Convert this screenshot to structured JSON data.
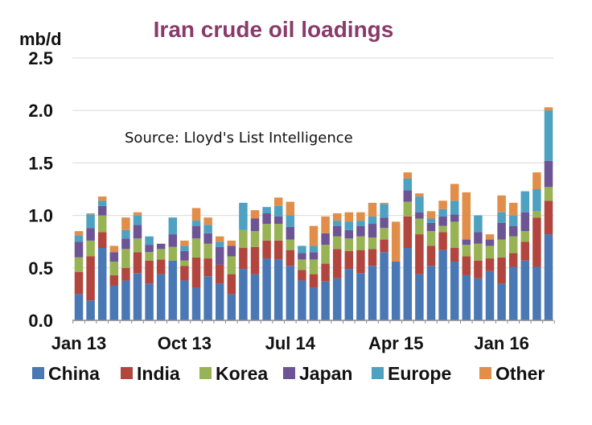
{
  "chart_data": {
    "type": "bar",
    "stacked": true,
    "title": "Iran crude oil loadings",
    "ylabel": "mb/d",
    "annotation": "Source: Lloyd's List Intelligence",
    "ylim": [
      0,
      2.5
    ],
    "yticks": [
      "0.0",
      "0.5",
      "1.0",
      "1.5",
      "2.0",
      "2.5"
    ],
    "ytick_values": [
      0,
      0.5,
      1.0,
      1.5,
      2.0,
      2.5
    ],
    "grid": true,
    "legend_position": "bottom",
    "x_tick_labels": [
      {
        "label": "Jan 13",
        "index": 0
      },
      {
        "label": "Oct 13",
        "index": 9
      },
      {
        "label": "Jul 14",
        "index": 18
      },
      {
        "label": "Apr 15",
        "index": 27
      },
      {
        "label": "Jan 16",
        "index": 36
      }
    ],
    "series": [
      {
        "name": "China",
        "color": "#4a78b5",
        "values": [
          0.25,
          0.19,
          0.69,
          0.33,
          0.38,
          0.45,
          0.35,
          0.44,
          0.57,
          0.38,
          0.31,
          0.42,
          0.35,
          0.25,
          0.49,
          0.44,
          0.59,
          0.58,
          0.52,
          0.38,
          0.31,
          0.37,
          0.4,
          0.49,
          0.45,
          0.52,
          0.65,
          0.56,
          0.69,
          0.44,
          0.52,
          0.67,
          0.56,
          0.43,
          0.4,
          0.47,
          0.35,
          0.51,
          0.57,
          0.51,
          0.82
        ]
      },
      {
        "name": "India",
        "color": "#b2463e",
        "values": [
          0.21,
          0.42,
          0.15,
          0.1,
          0.12,
          0.2,
          0.22,
          0.14,
          0.0,
          0.14,
          0.29,
          0.17,
          0.18,
          0.19,
          0.2,
          0.26,
          0.17,
          0.18,
          0.15,
          0.1,
          0.13,
          0.17,
          0.28,
          0.17,
          0.22,
          0.16,
          0.12,
          0.0,
          0.3,
          0.38,
          0.19,
          0.17,
          0.13,
          0.18,
          0.17,
          0.12,
          0.25,
          0.13,
          0.18,
          0.47,
          0.32
        ]
      },
      {
        "name": "Korea",
        "color": "#98b354",
        "values": [
          0.14,
          0.15,
          0.16,
          0.13,
          0.18,
          0.13,
          0.08,
          0.1,
          0.13,
          0.05,
          0.18,
          0.14,
          0.0,
          0.17,
          0.17,
          0.15,
          0.16,
          0.16,
          0.1,
          0.1,
          0.14,
          0.18,
          0.12,
          0.12,
          0.13,
          0.11,
          0.11,
          0.0,
          0.14,
          0.15,
          0.14,
          0.06,
          0.25,
          0.11,
          0.16,
          0.12,
          0.17,
          0.16,
          0.1,
          0.06,
          0.13
        ]
      },
      {
        "name": "Japan",
        "color": "#6d5494",
        "values": [
          0.15,
          0.12,
          0.09,
          0.09,
          0.1,
          0.13,
          0.07,
          0.05,
          0.12,
          0.09,
          0.12,
          0.1,
          0.17,
          0.1,
          0.0,
          0.12,
          0.1,
          0.07,
          0.12,
          0.06,
          0.07,
          0.11,
          0.1,
          0.08,
          0.1,
          0.13,
          0.1,
          0.0,
          0.11,
          0.06,
          0.08,
          0.09,
          0.07,
          0.05,
          0.11,
          0.06,
          0.16,
          0.1,
          0.18,
          0.0,
          0.25
        ]
      },
      {
        "name": "Europe",
        "color": "#4ea1c1",
        "values": [
          0.06,
          0.13,
          0.05,
          0.0,
          0.08,
          0.09,
          0.08,
          0.0,
          0.16,
          0.05,
          0.05,
          0.08,
          0.05,
          0.0,
          0.26,
          0.0,
          0.06,
          0.1,
          0.11,
          0.07,
          0.06,
          0.0,
          0.05,
          0.08,
          0.05,
          0.07,
          0.13,
          0.0,
          0.11,
          0.15,
          0.04,
          0.07,
          0.13,
          0.0,
          0.16,
          0.0,
          0.1,
          0.1,
          0.2,
          0.21,
          0.48
        ]
      },
      {
        "name": "Other",
        "color": "#e08e4a",
        "values": [
          0.04,
          0.01,
          0.04,
          0.06,
          0.12,
          0.03,
          0.0,
          0.0,
          0.0,
          0.05,
          0.12,
          0.07,
          0.05,
          0.05,
          0.0,
          0.08,
          0.0,
          0.08,
          0.13,
          0.0,
          0.19,
          0.16,
          0.07,
          0.09,
          0.08,
          0.13,
          0.01,
          0.38,
          0.06,
          0.03,
          0.07,
          0.08,
          0.16,
          0.45,
          0.0,
          0.05,
          0.16,
          0.12,
          0.0,
          0.16,
          0.03
        ]
      }
    ]
  }
}
